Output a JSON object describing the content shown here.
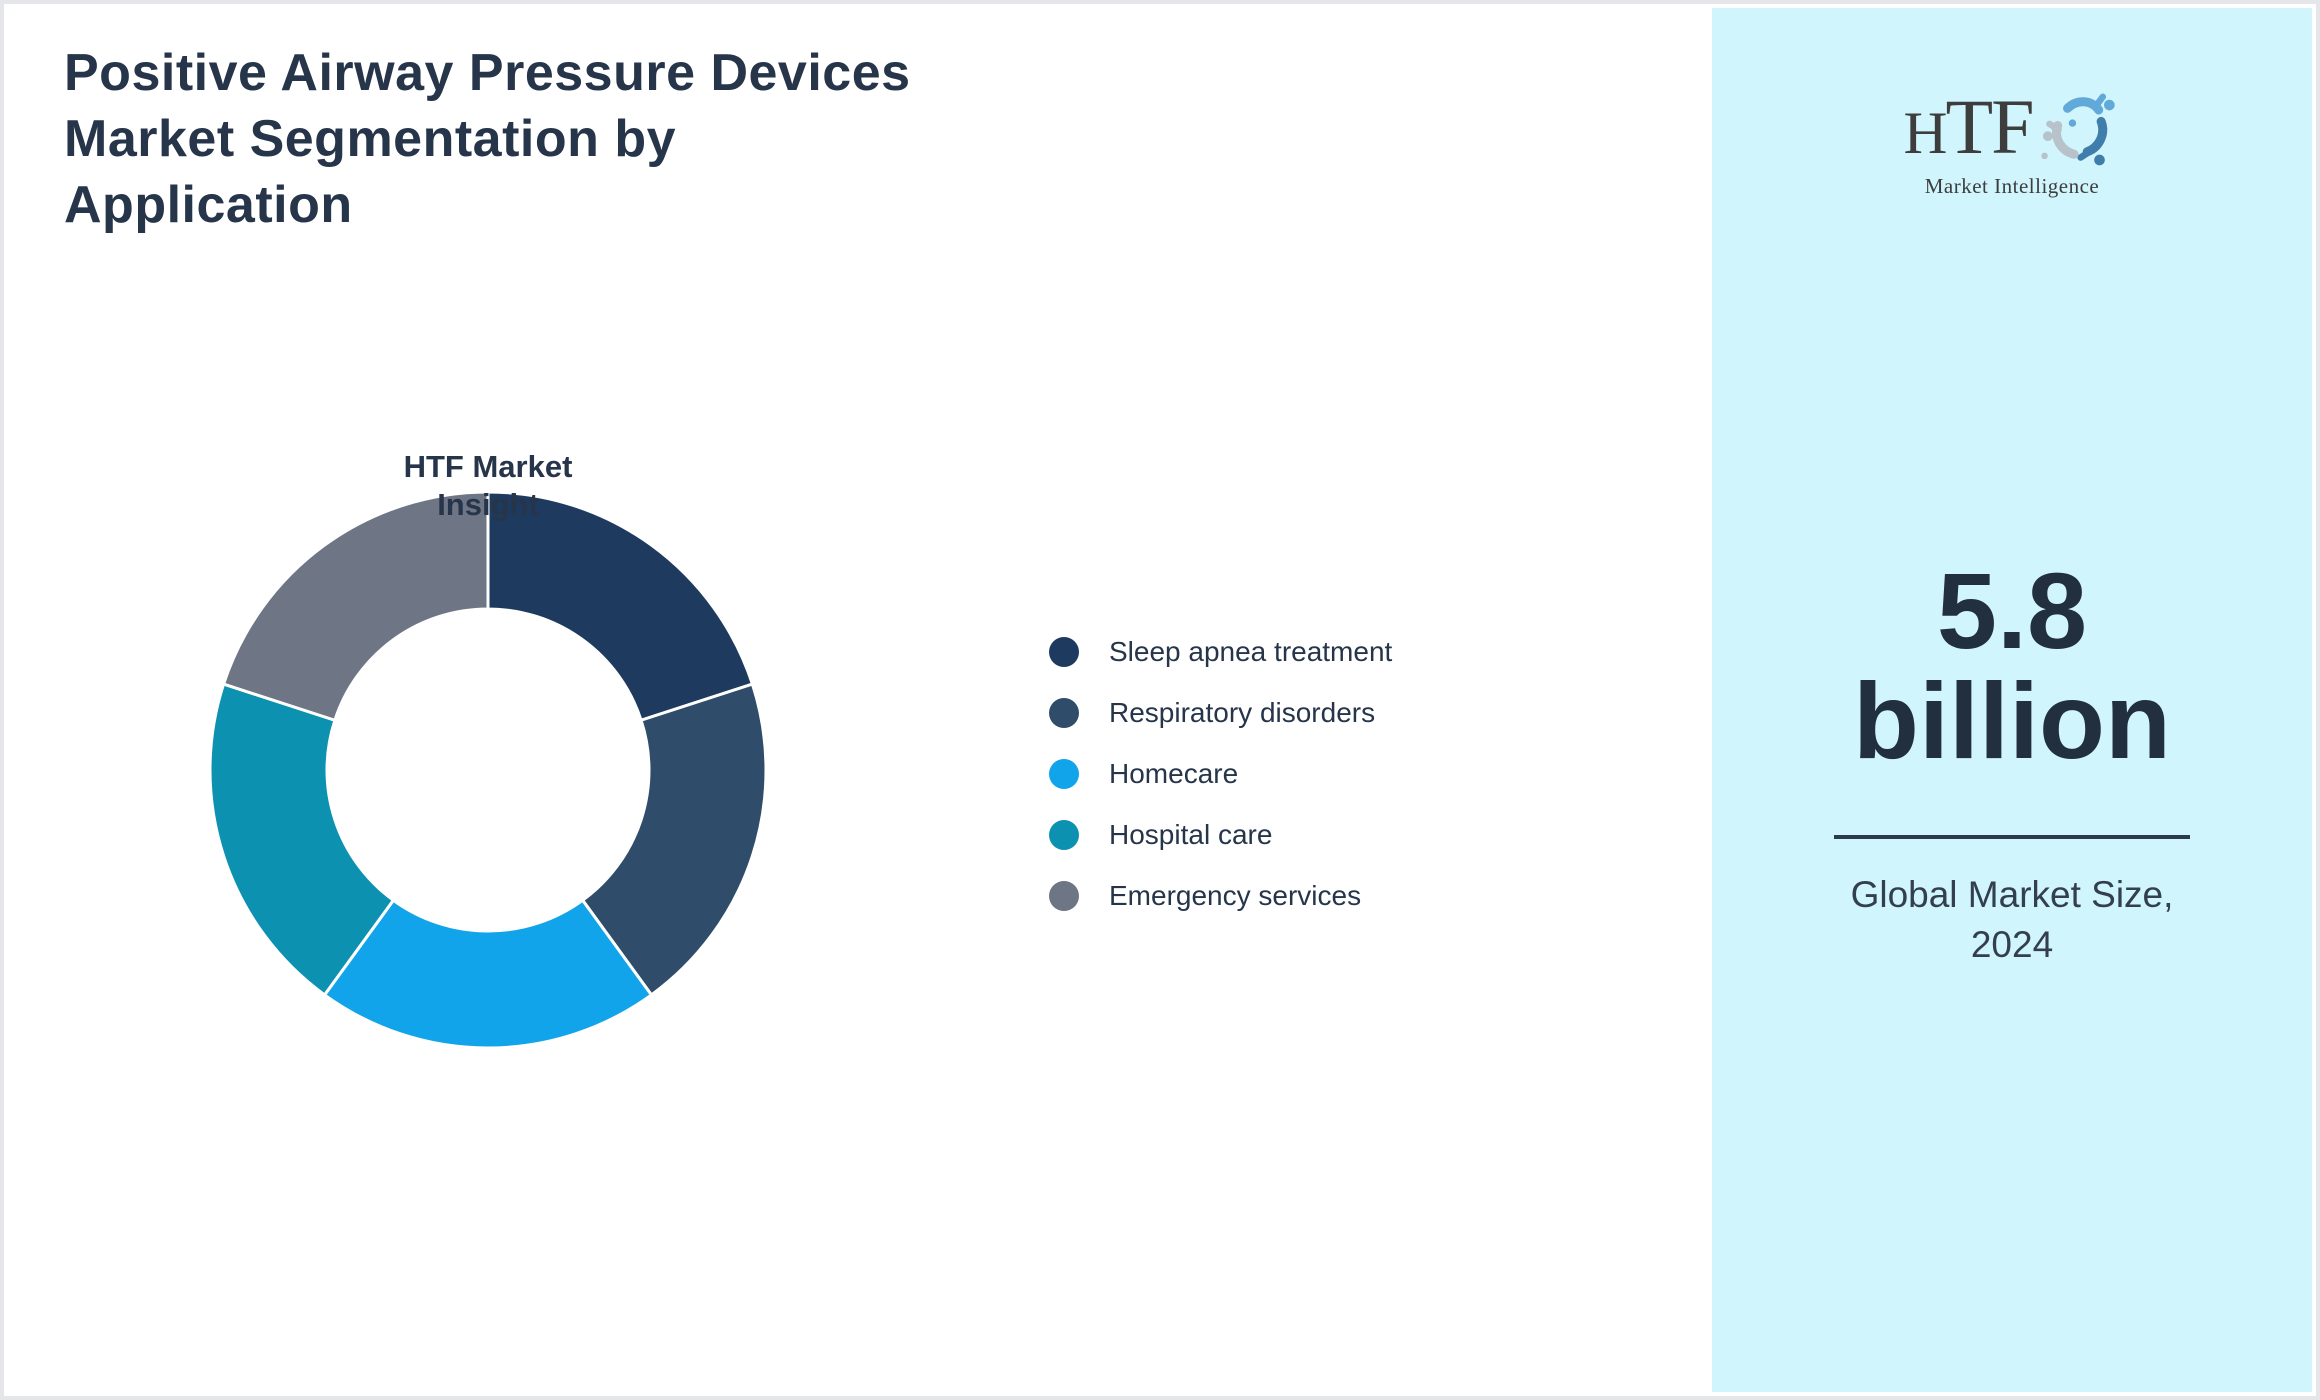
{
  "header": {
    "title_lines": [
      "Positive Airway Pressure Devices",
      "Market Segmentation by",
      "Application"
    ]
  },
  "chart_data": {
    "type": "pie",
    "subtype": "donut",
    "title": "Positive Airway Pressure Devices Market Segmentation by Application",
    "center_label": "HTF Market Insight",
    "categories": [
      "Sleep apnea treatment",
      "Respiratory disorders",
      "Homecare",
      "Hospital care",
      "Emergency services"
    ],
    "values": [
      20,
      20,
      20,
      20,
      20
    ],
    "values_unit": "percent, estimated from equal 72-degree arcs",
    "colors": [
      "#1e3a5e",
      "#2f4d6b",
      "#12a4ea",
      "#0c91b1",
      "#6e7585"
    ],
    "start_angle_deg": 0,
    "direction": "clockwise",
    "legend_position": "right",
    "separator_color": "#ffffff"
  },
  "sidebar": {
    "background": "#d1f5fc",
    "logo": {
      "text": "HTF",
      "subtext": "Market Intelligence",
      "icon": "three-figure-swirl-icon",
      "icon_colors": [
        "#61a9d9",
        "#b7c2cb",
        "#3f7dab"
      ]
    },
    "market_size": {
      "value_lines": [
        "5.8",
        "billion"
      ],
      "caption_lines": [
        "Global Market Size,",
        "2024"
      ]
    }
  }
}
